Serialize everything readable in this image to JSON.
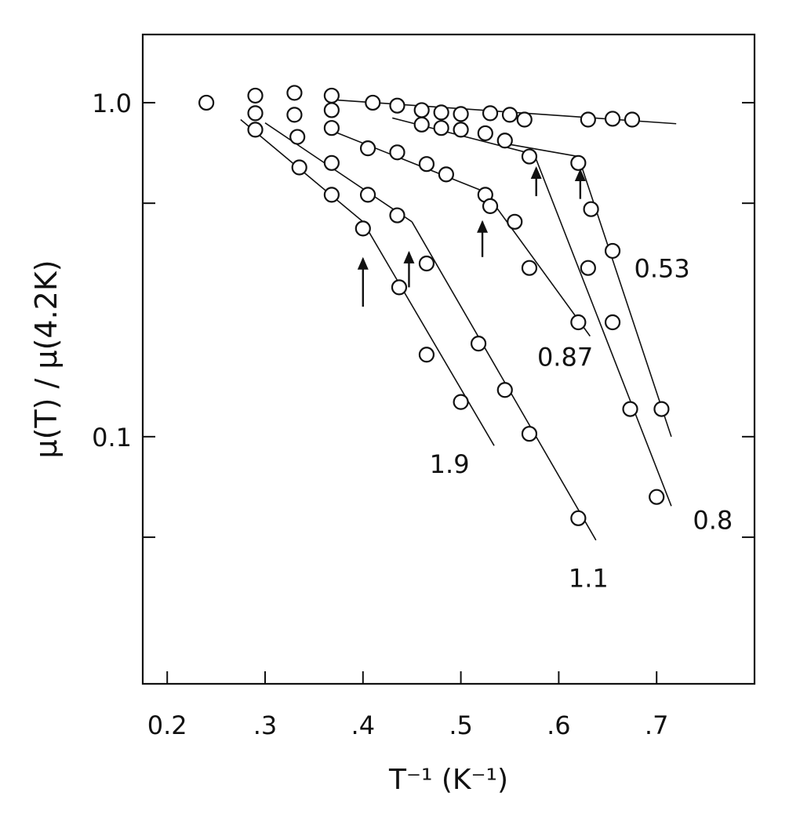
{
  "chart_data": {
    "type": "scatter",
    "xlabel": "T⁻¹  (K⁻¹)",
    "ylabel": "μ(T) / μ(4.2K)",
    "xlim": [
      0.175,
      0.8
    ],
    "ylim": [
      0.0182,
      1.6
    ],
    "y_scale": "log",
    "grid": false,
    "x_ticks": [
      0.2,
      0.3,
      0.4,
      0.5,
      0.6,
      0.7
    ],
    "x_tick_labels": [
      "0.2",
      ".3",
      ".4",
      ".5",
      ".6",
      ".7"
    ],
    "y_ticks": [
      1.0,
      0.1
    ],
    "y_tick_labels": [
      "1.0",
      "0.1"
    ],
    "y_minor_ticks": [
      0.5,
      0.05
    ],
    "series": [
      {
        "name": "1.9",
        "points": [
          [
            0.24,
            1.0
          ],
          [
            0.29,
            0.83
          ],
          [
            0.335,
            0.64
          ],
          [
            0.368,
            0.53
          ],
          [
            0.4,
            0.42
          ],
          [
            0.437,
            0.28
          ],
          [
            0.465,
            0.176
          ],
          [
            0.5,
            0.127
          ]
        ],
        "fit": [
          [
            [
              0.275,
              0.89
            ],
            [
              0.4,
              0.44
            ]
          ],
          [
            [
              0.4,
              0.44
            ],
            [
              0.534,
              0.094
            ]
          ]
        ],
        "kink_x": 0.4
      },
      {
        "name": "1.1",
        "points": [
          [
            0.29,
            0.93
          ],
          [
            0.333,
            0.79
          ],
          [
            0.368,
            0.66
          ],
          [
            0.405,
            0.53
          ],
          [
            0.435,
            0.46
          ],
          [
            0.465,
            0.33
          ],
          [
            0.518,
            0.19
          ],
          [
            0.545,
            0.138
          ],
          [
            0.57,
            0.102
          ],
          [
            0.62,
            0.057
          ]
        ],
        "fit": [
          [
            [
              0.3,
              0.87
            ],
            [
              0.45,
              0.44
            ]
          ],
          [
            [
              0.45,
              0.44
            ],
            [
              0.638,
              0.049
            ]
          ]
        ],
        "kink_x": 0.45
      },
      {
        "name": "0.87",
        "points": [
          [
            0.29,
            1.05
          ],
          [
            0.33,
            0.92
          ],
          [
            0.368,
            0.84
          ],
          [
            0.405,
            0.73
          ],
          [
            0.435,
            0.71
          ],
          [
            0.465,
            0.655
          ],
          [
            0.485,
            0.61
          ],
          [
            0.525,
            0.53
          ],
          [
            0.53,
            0.49
          ],
          [
            0.555,
            0.44
          ],
          [
            0.57,
            0.32
          ],
          [
            0.62,
            0.22
          ]
        ],
        "fit": [
          [
            [
              0.37,
              0.82
            ],
            [
              0.525,
              0.54
            ]
          ],
          [
            [
              0.525,
              0.54
            ],
            [
              0.632,
              0.2
            ]
          ]
        ],
        "kink_x": 0.523
      },
      {
        "name": "0.8",
        "points": [
          [
            0.33,
            1.07
          ],
          [
            0.368,
            0.95
          ],
          [
            0.46,
            0.86
          ],
          [
            0.48,
            0.84
          ],
          [
            0.5,
            0.83
          ],
          [
            0.525,
            0.81
          ],
          [
            0.545,
            0.77
          ],
          [
            0.57,
            0.69
          ],
          [
            0.63,
            0.32
          ],
          [
            0.655,
            0.22
          ],
          [
            0.673,
            0.121
          ],
          [
            0.7,
            0.066
          ]
        ],
        "fit": [
          [
            [
              0.43,
              0.9
            ],
            [
              0.575,
              0.7
            ]
          ],
          [
            [
              0.575,
              0.7
            ],
            [
              0.715,
              0.062
            ]
          ]
        ],
        "kink_x": 0.577
      },
      {
        "name": "0.53",
        "points": [
          [
            0.368,
            1.05
          ],
          [
            0.41,
            1.0
          ],
          [
            0.435,
            0.98
          ],
          [
            0.46,
            0.95
          ],
          [
            0.48,
            0.935
          ],
          [
            0.5,
            0.925
          ],
          [
            0.53,
            0.93
          ],
          [
            0.55,
            0.92
          ],
          [
            0.565,
            0.89
          ],
          [
            0.63,
            0.89
          ],
          [
            0.655,
            0.895
          ],
          [
            0.675,
            0.89
          ],
          [
            0.62,
            0.66
          ],
          [
            0.633,
            0.48
          ],
          [
            0.655,
            0.36
          ],
          [
            0.705,
            0.121
          ]
        ],
        "fit": [
          [
            [
              0.37,
              1.02
            ],
            [
              0.72,
              0.865
            ]
          ],
          [
            [
              0.55,
              0.75
            ],
            [
              0.62,
              0.69
            ]
          ],
          [
            [
              0.62,
              0.69
            ],
            [
              0.715,
              0.1
            ]
          ]
        ],
        "kink_x": 0.622
      }
    ],
    "arrows": [
      {
        "x": 0.4,
        "y_tip": 0.345,
        "y_tail": 0.245
      },
      {
        "x": 0.447,
        "y_tip": 0.36,
        "y_tail": 0.28
      },
      {
        "x": 0.522,
        "y_tip": 0.445,
        "y_tail": 0.345
      },
      {
        "x": 0.577,
        "y_tip": 0.645,
        "y_tail": 0.525
      },
      {
        "x": 0.622,
        "y_tip": 0.635,
        "y_tail": 0.515
      }
    ],
    "annotations": [
      {
        "text": "1.9",
        "x": 0.468,
        "y": 0.078
      },
      {
        "text": "1.1",
        "x": 0.61,
        "y": 0.0355
      },
      {
        "text": "0.87",
        "x": 0.578,
        "y": 0.163
      },
      {
        "text": "0.8",
        "x": 0.737,
        "y": 0.053
      },
      {
        "text": "0.53",
        "x": 0.677,
        "y": 0.3
      }
    ]
  }
}
